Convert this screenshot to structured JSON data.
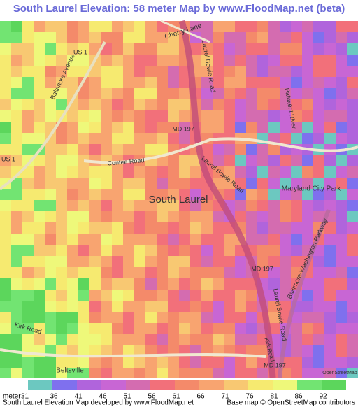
{
  "header": {
    "title": "South Laurel Elevation: 58 meter Map by www.FloodMap.net (beta)"
  },
  "map": {
    "labels": [
      "Cherry Lane",
      "Laurel Bowie Road",
      "US 1",
      "Baltimore Avenue",
      "MD 197",
      "US 1",
      "Contee Road",
      "Laurel Bowie Road",
      "Patuxent River",
      "Maryland City Park",
      "South Laurel",
      "MD 197",
      "Baltimore-Washington Parkway",
      "Laurel Bowie Road",
      "Kirk Road",
      "Beltsville",
      "MD 197",
      "Kirk Road",
      "OpenStreetMap"
    ]
  },
  "legend": {
    "unit": "meter",
    "ticks": [
      31,
      36,
      41,
      46,
      51,
      56,
      61,
      66,
      71,
      76,
      81,
      86,
      92
    ],
    "colors": [
      "#6cc8c0",
      "#7f70ee",
      "#b064dc",
      "#c866d4",
      "#d46cb0",
      "#f2707a",
      "#f48a6a",
      "#f8a470",
      "#f8c872",
      "#f6ea70",
      "#eef87a",
      "#72e472",
      "#5cd65c"
    ]
  },
  "footer": {
    "left": "South Laurel Elevation Map developed by www.FloodMap.net",
    "right": "Base map © OpenStreetMap contributors"
  }
}
